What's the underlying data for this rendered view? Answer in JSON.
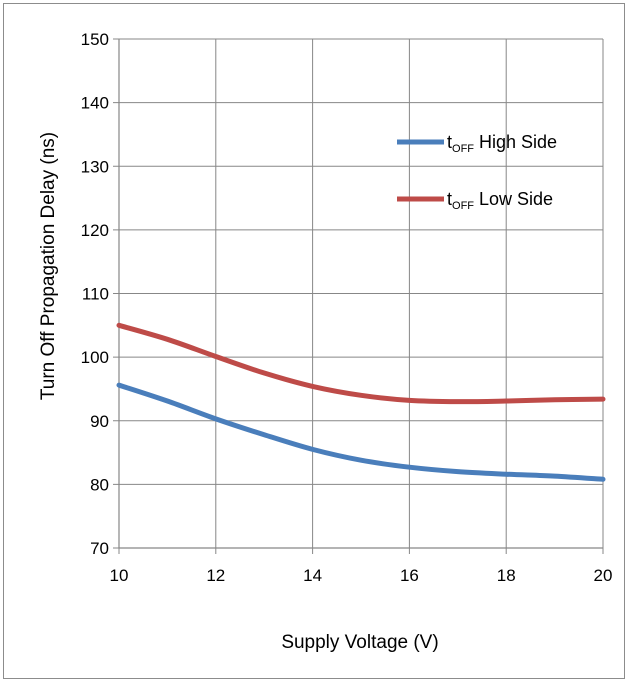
{
  "chart_data": {
    "type": "line",
    "xlabel": "Supply Voltage (V)",
    "ylabel": "Turn Off Propagation Delay (ns)",
    "xlim": [
      10,
      20
    ],
    "ylim": [
      70,
      150
    ],
    "xticks": [
      10,
      12,
      14,
      16,
      18,
      20
    ],
    "yticks": [
      70,
      80,
      90,
      100,
      110,
      120,
      130,
      140,
      150
    ],
    "grid": true,
    "legend_position": "top-right",
    "series": [
      {
        "name_main": "t",
        "name_sub": "OFF",
        "name_rest": " High Side",
        "color": "#4a7ebb",
        "x": [
          10,
          11,
          12,
          13,
          14,
          15,
          16,
          17,
          18,
          19,
          20
        ],
        "values": [
          95.6,
          93.1,
          90.3,
          87.8,
          85.5,
          83.8,
          82.7,
          82.0,
          81.6,
          81.3,
          80.8
        ]
      },
      {
        "name_main": "t",
        "name_sub": "OFF",
        "name_rest": " Low Side",
        "color": "#be4b48",
        "x": [
          10,
          11,
          12,
          13,
          14,
          15,
          16,
          17,
          18,
          19,
          20
        ],
        "values": [
          105.0,
          102.8,
          100.1,
          97.5,
          95.4,
          94.0,
          93.2,
          93.0,
          93.1,
          93.3,
          93.4
        ]
      }
    ]
  }
}
